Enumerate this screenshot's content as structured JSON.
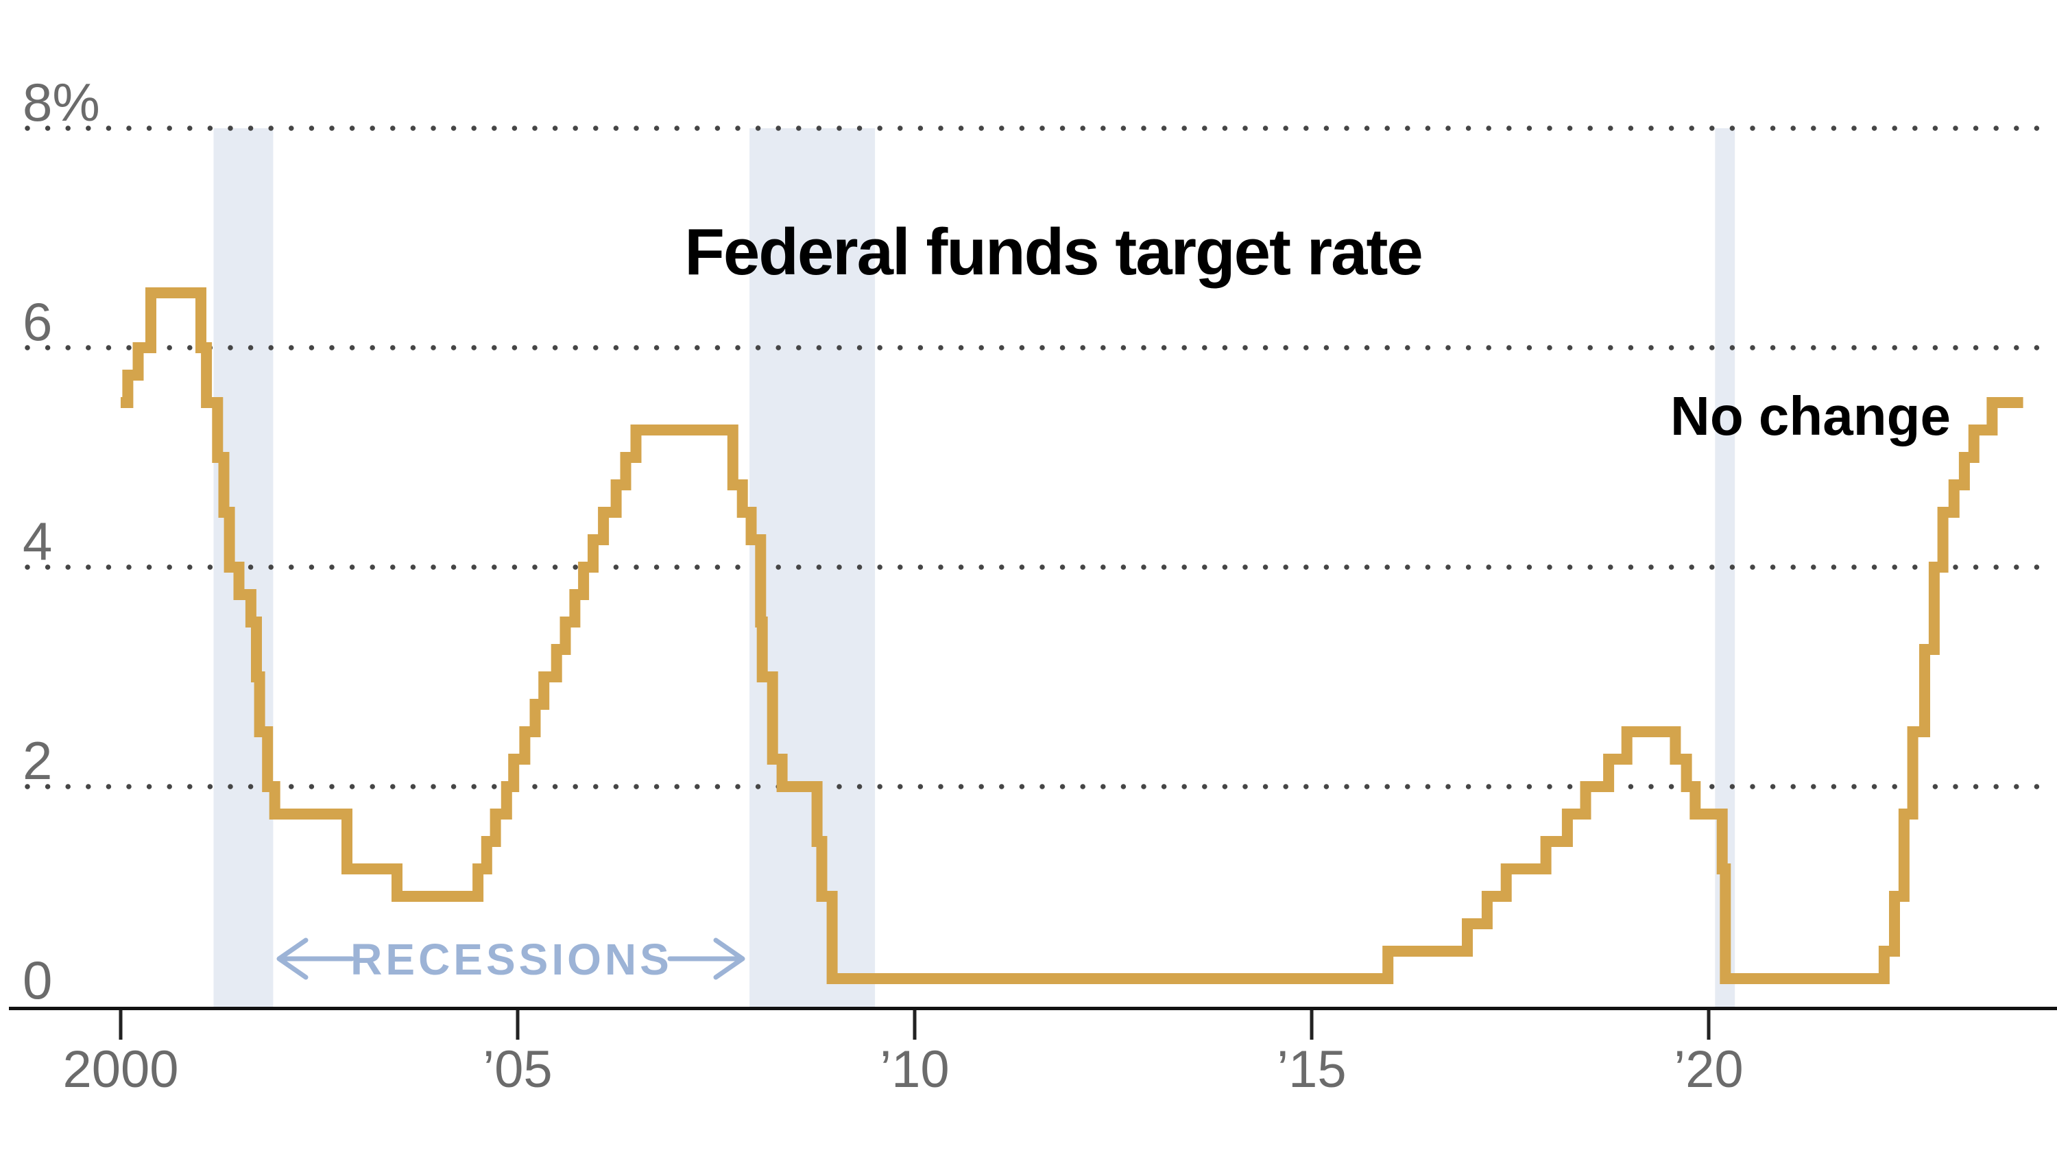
{
  "chart_data": {
    "type": "line",
    "title": "Federal funds target rate",
    "subtitle": "",
    "xlabel": "",
    "ylabel": "",
    "x_axis": {
      "tick_years": [
        2000,
        2005,
        2010,
        2015,
        2020
      ],
      "tick_labels": [
        "2000",
        "’05",
        "’10",
        "’15",
        "’20"
      ],
      "range_years": [
        1999.85,
        2024.45
      ]
    },
    "y_axis": {
      "tick_values": [
        8,
        6,
        4,
        2,
        0
      ],
      "tick_labels": [
        "8%",
        "6",
        "4",
        "2",
        "0"
      ],
      "range_percent": [
        0,
        8.6
      ],
      "gridline_values": [
        8,
        6,
        4,
        2
      ],
      "grid_style": "dotted"
    },
    "series": [
      {
        "name": "Federal funds target rate",
        "unit": "percent",
        "style": "step",
        "points": [
          [
            2000.0,
            5.5
          ],
          [
            2000.09,
            5.75
          ],
          [
            2000.22,
            6.0
          ],
          [
            2000.38,
            6.5
          ],
          [
            2001.01,
            6.0
          ],
          [
            2001.08,
            5.5
          ],
          [
            2001.22,
            5.0
          ],
          [
            2001.3,
            4.5
          ],
          [
            2001.37,
            4.0
          ],
          [
            2001.49,
            3.75
          ],
          [
            2001.64,
            3.5
          ],
          [
            2001.71,
            3.0
          ],
          [
            2001.75,
            2.5
          ],
          [
            2001.85,
            2.0
          ],
          [
            2001.94,
            1.75
          ],
          [
            2002.85,
            1.25
          ],
          [
            2003.48,
            1.0
          ],
          [
            2004.5,
            1.25
          ],
          [
            2004.61,
            1.5
          ],
          [
            2004.72,
            1.75
          ],
          [
            2004.86,
            2.0
          ],
          [
            2004.95,
            2.25
          ],
          [
            2005.09,
            2.5
          ],
          [
            2005.22,
            2.75
          ],
          [
            2005.33,
            3.0
          ],
          [
            2005.49,
            3.25
          ],
          [
            2005.6,
            3.5
          ],
          [
            2005.72,
            3.75
          ],
          [
            2005.83,
            4.0
          ],
          [
            2005.95,
            4.25
          ],
          [
            2006.08,
            4.5
          ],
          [
            2006.24,
            4.75
          ],
          [
            2006.36,
            5.0
          ],
          [
            2006.49,
            5.25
          ],
          [
            2007.71,
            4.75
          ],
          [
            2007.83,
            4.5
          ],
          [
            2007.94,
            4.25
          ],
          [
            2008.06,
            3.5
          ],
          [
            2008.08,
            3.0
          ],
          [
            2008.21,
            2.25
          ],
          [
            2008.33,
            2.0
          ],
          [
            2008.77,
            1.5
          ],
          [
            2008.83,
            1.0
          ],
          [
            2008.96,
            0.25
          ],
          [
            2015.96,
            0.5
          ],
          [
            2016.96,
            0.75
          ],
          [
            2017.21,
            1.0
          ],
          [
            2017.45,
            1.25
          ],
          [
            2017.95,
            1.5
          ],
          [
            2018.22,
            1.75
          ],
          [
            2018.45,
            2.0
          ],
          [
            2018.74,
            2.25
          ],
          [
            2018.97,
            2.5
          ],
          [
            2019.58,
            2.25
          ],
          [
            2019.72,
            2.0
          ],
          [
            2019.83,
            1.75
          ],
          [
            2020.17,
            1.25
          ],
          [
            2020.21,
            0.25
          ],
          [
            2022.21,
            0.5
          ],
          [
            2022.34,
            1.0
          ],
          [
            2022.46,
            1.75
          ],
          [
            2022.57,
            2.5
          ],
          [
            2022.72,
            3.25
          ],
          [
            2022.84,
            4.0
          ],
          [
            2022.95,
            4.5
          ],
          [
            2023.09,
            4.75
          ],
          [
            2023.22,
            5.0
          ],
          [
            2023.34,
            5.25
          ],
          [
            2023.57,
            5.5
          ],
          [
            2023.96,
            5.5
          ]
        ]
      }
    ],
    "recession_bands_years": [
      [
        2001.17,
        2001.92
      ],
      [
        2007.92,
        2009.5
      ],
      [
        2020.08,
        2020.33
      ]
    ],
    "annotations": {
      "no_change": {
        "text": "No change",
        "x_year": 2023.1,
        "y_percent": 5.4
      },
      "recessions": {
        "text": "RECESSIONS",
        "x_year": 2004.9,
        "y_percent": 0.42,
        "arrows": "left-and-right"
      }
    },
    "legend": "none",
    "colors": {
      "line": "#d4a44c",
      "recession_band": "#e6ebf3",
      "grid_dots": "#454545",
      "axis_labels": "#6b6b6b",
      "baseline": "#121212",
      "tick_marks": "#222222",
      "title": "#000000",
      "no_change_label": "#000000",
      "recessions_label": "#9cb3d6",
      "background": "#ffffff"
    }
  }
}
